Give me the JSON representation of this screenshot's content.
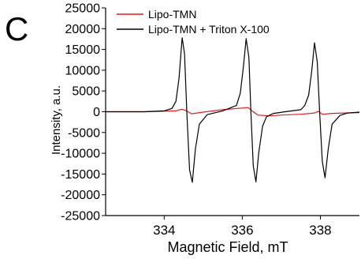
{
  "panel_label": "C",
  "chart_data": {
    "type": "line",
    "xlabel": "Magnetic Field, mT",
    "ylabel": "Intensity, a.u.",
    "xlim": [
      332.5,
      339.0
    ],
    "ylim": [
      -25000,
      25000
    ],
    "xticks": [
      334,
      336,
      338
    ],
    "xtick_labels": [
      "334",
      "336",
      "338"
    ],
    "yticks": [
      25000,
      20000,
      15000,
      10000,
      5000,
      0,
      -5000,
      -10000,
      -15000,
      -20000,
      -25000
    ],
    "ytick_labels": [
      "25000",
      "20000",
      "15000",
      "10000",
      "5000",
      "0",
      "-5000",
      "-10000",
      "-15000",
      "-20000",
      "-25000"
    ],
    "grid": false,
    "legend_position": "top-center",
    "series": [
      {
        "name": "Lipo-TMN",
        "color": "#e31a1c",
        "x": [
          332.5,
          333.5,
          334.3,
          334.45,
          334.55,
          334.7,
          335.0,
          335.5,
          336.0,
          336.15,
          336.25,
          336.4,
          336.7,
          337.0,
          337.5,
          337.85,
          337.95,
          338.05,
          338.3,
          338.6,
          339.0
        ],
        "y": [
          0,
          0,
          200,
          600,
          300,
          -500,
          -100,
          500,
          900,
          1000,
          200,
          -800,
          -1000,
          -800,
          -600,
          -300,
          100,
          -600,
          -400,
          -300,
          -200
        ]
      },
      {
        "name": "Lipo-TMN + Triton X-100",
        "color": "#000000",
        "x": [
          332.5,
          333.5,
          334.0,
          334.2,
          334.3,
          334.38,
          334.46,
          334.52,
          334.58,
          334.65,
          334.72,
          334.8,
          334.9,
          335.1,
          335.5,
          335.85,
          335.95,
          336.03,
          336.1,
          336.17,
          336.22,
          336.28,
          336.35,
          336.42,
          336.52,
          336.62,
          336.8,
          337.1,
          337.5,
          337.6,
          337.7,
          337.78,
          337.85,
          337.92,
          337.98,
          338.05,
          338.12,
          338.2,
          338.3,
          338.5,
          338.7,
          339.0
        ],
        "y": [
          0,
          0,
          200,
          800,
          2500,
          8000,
          17800,
          14000,
          0,
          -14000,
          -17000,
          -9000,
          -3000,
          -700,
          200,
          1500,
          4500,
          11000,
          17600,
          13000,
          0,
          -13000,
          -16900,
          -10000,
          -3500,
          -1200,
          -400,
          0,
          500,
          1500,
          4000,
          10000,
          16600,
          12000,
          0,
          -12000,
          -15900,
          -9000,
          -3000,
          -900,
          -300,
          -100
        ]
      }
    ]
  }
}
